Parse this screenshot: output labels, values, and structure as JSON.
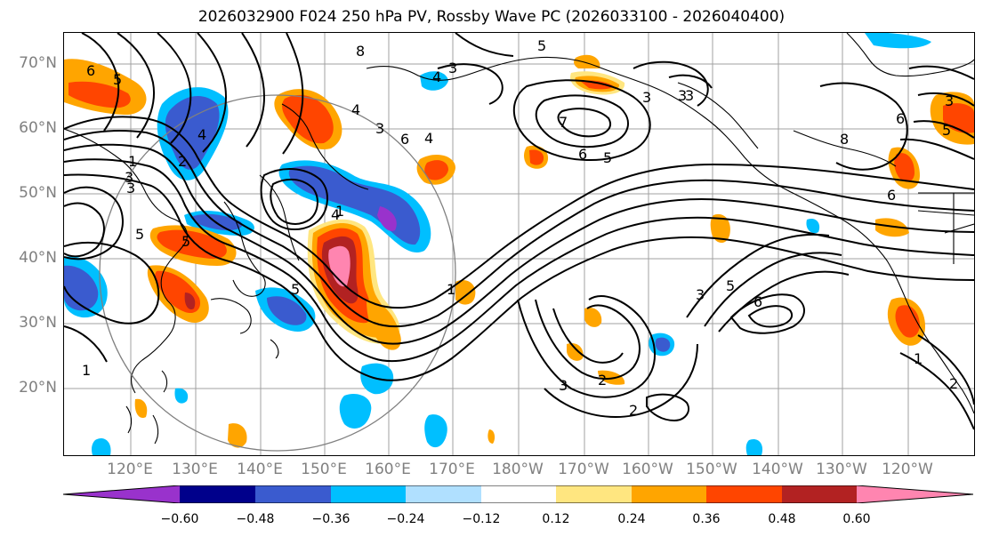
{
  "title": "2026032900 F024 250 hPa PV, Rossby Wave PC (2026033100 - 2026040400)",
  "lat_labels": [
    "70°N",
    "60°N",
    "50°N",
    "40°N",
    "30°N",
    "20°N"
  ],
  "lon_labels": [
    "120°E",
    "130°E",
    "140°E",
    "150°E",
    "160°E",
    "170°E",
    "180°W",
    "170°W",
    "160°W",
    "150°W",
    "140°W",
    "130°W",
    "120°W"
  ],
  "colorbar": {
    "ticks": [
      "−0.60",
      "−0.48",
      "−0.36",
      "−0.24",
      "−0.12",
      "0.12",
      "0.24",
      "0.36",
      "0.48",
      "0.60"
    ],
    "colors": [
      "#9932CC",
      "#00008B",
      "#3A5BCF",
      "#00BFFF",
      "#B0E0FF",
      "#FFFFFF",
      "#FFE680",
      "#FFA500",
      "#FF4500",
      "#B22222",
      "#FF85B0"
    ]
  },
  "contour_labels": [
    "6",
    "5",
    "4",
    "3",
    "2",
    "1",
    "5",
    "8",
    "4",
    "3",
    "6",
    "5",
    "3",
    "7",
    "6",
    "5",
    "3",
    "4",
    "3",
    "3",
    "8",
    "6",
    "3",
    "5",
    "5",
    "4",
    "1",
    "5",
    "3",
    "5",
    "6",
    "2",
    "2",
    "3",
    "1",
    "2",
    "1",
    "3",
    "4",
    "6",
    "1"
  ],
  "colors": {
    "frame": "#000000",
    "grid": "#a0a0a0",
    "coast": "#000000",
    "circle": "#808080",
    "axis_label": "#808080"
  }
}
